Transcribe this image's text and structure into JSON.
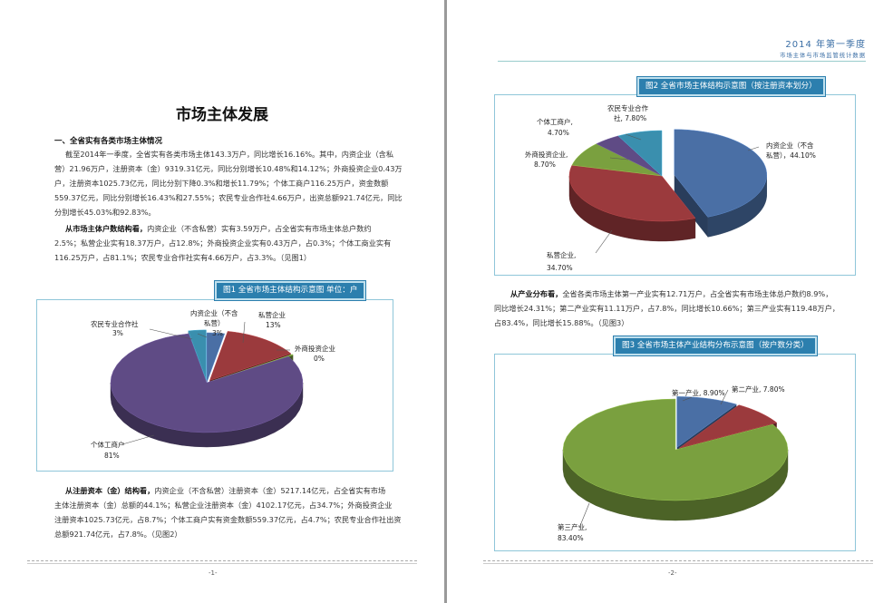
{
  "left": {
    "title": "市场主体发展",
    "section_heading": "一、全省实有各类市场主体情况",
    "para1_l1": "截至2014年一季度，全省实有各类市场主体143.3万户，同比增长16.16%。其中，内资企业（含私",
    "para1_l2": "营）21.96万户，注册资本（金）9319.31亿元，同比分别增长10.48%和14.12%；外商投资企业0.43万",
    "para1_l3": "户，注册资本1025.73亿元，同比分别下降0.3%和增长11.79%；个体工商户116.25万户，资金数额",
    "para1_l4": "559.37亿元，同比分别增长16.43%和27.55%；农民专业合作社4.66万户，出资总额921.74亿元，同比",
    "para1_l5": "分别增长45.03%和92.83%。",
    "para2_lead": "从市场主体户数结构看，",
    "para2_l1": "内资企业（不含私营）实有3.59万户，占全省实有市场主体总户数约",
    "para2_l2": "2.5%；私营企业实有18.37万户，占12.8%；外商投资企业实有0.43万户，占0.3%；个体工商业实有",
    "para2_l3": "116.25万户，占81.1%；农民专业合作社实有4.66万户，占3.3%。（见图1）",
    "para3_lead": "从注册资本（金）结构看，",
    "para3_l1": "内资企业（不含私营）注册资本（金）5217.14亿元，占全省实有市场",
    "para3_l2": "主体注册资本（金）总额的44.1%；私营企业注册资本（金）4102.17亿元，占34.7%；外商投资企业",
    "para3_l3": "注册资本1025.73亿元，占8.7%；个体工商户实有资金数额559.37亿元，占4.7%；农民专业合作社出资",
    "para3_l4": "总额921.74亿元，占7.8%。（见图2）",
    "page_number": "-1-"
  },
  "right": {
    "header_year": "2014 年第一季度",
    "header_sub": "市场主体与市场监管统计数据",
    "para4_lead": "从产业分布看，",
    "para4_l1": "全省各类市场主体第一产业实有12.71万户，占全省实有市场主体总户数约8.9%，",
    "para4_l2": "同比增长24.31%；第二产业实有11.11万户，占7.8%，同比增长10.66%；第三产业实有119.48万户，",
    "para4_l3": "占83.4%，同比增长15.88%。（见图3）",
    "page_number": "-2-"
  },
  "chart_data": [
    {
      "type": "pie",
      "title": "图1 全省市场主体结构示意图  单位：户",
      "labels": [
        "内资企业（不含私营）",
        "私营企业",
        "外商投资企业",
        "个体工商户",
        "农民专业合作社"
      ],
      "values": [
        3,
        13,
        0,
        81,
        3
      ],
      "value_labels": [
        "3%",
        "13%",
        "0%",
        "81%",
        "3%"
      ],
      "colors": [
        "#4a6fa5",
        "#9b3a3d",
        "#7aa03f",
        "#5f4b85",
        "#3a8fae"
      ]
    },
    {
      "type": "pie",
      "title": "图2 全省市场主体结构示意图（按注册资本划分）",
      "labels": [
        "内资企业（不含私营）",
        "私营企业",
        "外商投资企业",
        "个体工商户",
        "农民专业合作社"
      ],
      "values": [
        44.1,
        34.7,
        8.7,
        4.7,
        7.8
      ],
      "value_labels": [
        "44.10%",
        "34.70%",
        "8.70%",
        "4.70%",
        "7.80%"
      ],
      "colors": [
        "#4a6fa5",
        "#9b3a3d",
        "#7aa03f",
        "#5f4b85",
        "#3a8fae"
      ]
    },
    {
      "type": "pie",
      "title": "图3 全省市场主体产业结构分布示意图（按户数分类）",
      "labels": [
        "第一产业",
        "第二产业",
        "第三产业"
      ],
      "values": [
        8.9,
        7.8,
        83.4
      ],
      "value_labels": [
        "8.90%",
        "7.80%",
        "83.40%"
      ],
      "colors": [
        "#4a6fa5",
        "#9b3a3d",
        "#7aa03f"
      ]
    }
  ],
  "pie_labels": {
    "c1": [
      "内资企业（不含",
      "私营）",
      "3%",
      "私营企业",
      "13%",
      "外商投资企业",
      "0%",
      "个体工商户",
      "81%",
      "农民专业合作社",
      "3%"
    ],
    "c2": [
      "内资企业（不含",
      "私营），44.10%",
      "私营企业,",
      "34.70%",
      "外商投资企业,",
      "8.70%",
      "个体工商户,",
      "4.70%",
      "农民专业合作",
      "社, 7.80%"
    ],
    "c3": [
      "第一产业, 8.90%",
      "第二产业, 7.80%",
      "第三产业,",
      "83.40%"
    ]
  }
}
